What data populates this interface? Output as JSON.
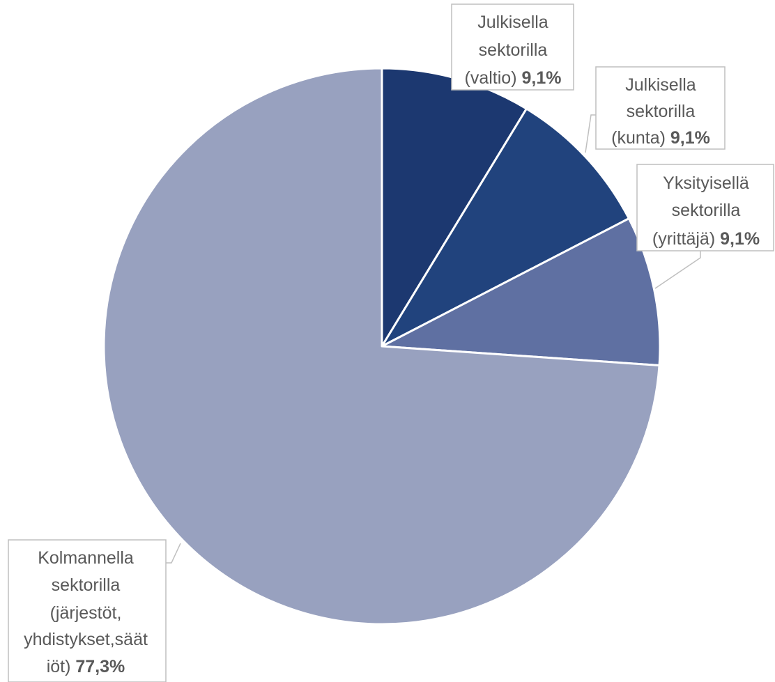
{
  "chart_data": {
    "type": "pie",
    "slices": [
      {
        "label_lines": [
          "Julkisella",
          "sektorilla",
          "(valtio)"
        ],
        "value": 9.1,
        "value_label": "9,1%",
        "color": "#1c3870"
      },
      {
        "label_lines": [
          "Julkisella",
          "sektorilla",
          "(kunta)"
        ],
        "value": 9.1,
        "value_label": "9,1%",
        "color": "#21437d"
      },
      {
        "label_lines": [
          "Yksityisellä",
          "sektorilla",
          "(yrittäjä)"
        ],
        "value": 9.1,
        "value_label": "9,1%",
        "color": "#5f70a2"
      },
      {
        "label_lines": [
          "Kolmannella",
          "sektorilla",
          "(järjestöt,",
          "yhdistykset,säät",
          "iöt)"
        ],
        "value": 77.3,
        "value_label": "77,3%",
        "color": "#98a1bf"
      }
    ],
    "start_angle_deg": 0,
    "direction": "clockwise",
    "legend": "none",
    "data_labels": "outside-with-leader-lines"
  }
}
